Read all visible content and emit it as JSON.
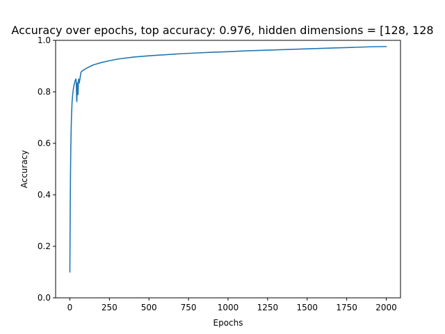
{
  "chart_data": {
    "type": "line",
    "title": "Accuracy over epochs, top accuracy: 0.976, hidden dimensions = [128, 128",
    "xlabel": "Epochs",
    "ylabel": "Accuracy",
    "xlim": [
      -90,
      2090
    ],
    "ylim": [
      0,
      1
    ],
    "xticks": [
      0,
      250,
      500,
      750,
      1000,
      1250,
      1500,
      1750,
      2000
    ],
    "yticks": [
      0.0,
      0.2,
      0.4,
      0.6,
      0.8,
      1.0
    ],
    "xtick_labels": [
      "0",
      "250",
      "500",
      "750",
      "1000",
      "1250",
      "1500",
      "1750",
      "2000"
    ],
    "ytick_labels": [
      "0.0",
      "0.2",
      "0.4",
      "0.6",
      "0.8",
      "1.0"
    ],
    "grid": false,
    "color": "#1f77b4",
    "series": [
      {
        "x": [
          0,
          2,
          4,
          6,
          8,
          10,
          14,
          18,
          22,
          26,
          30,
          34,
          38,
          40,
          42,
          43,
          44,
          46,
          48,
          50,
          52,
          54,
          56,
          58,
          60,
          62,
          64,
          66,
          70,
          75,
          80,
          90,
          100,
          125,
          150,
          200,
          250,
          300,
          400,
          500,
          600,
          700,
          800,
          900,
          1000,
          1100,
          1200,
          1300,
          1400,
          1500,
          1600,
          1700,
          1800,
          1900,
          2000
        ],
        "y": [
          0.1,
          0.32,
          0.48,
          0.58,
          0.65,
          0.7,
          0.76,
          0.79,
          0.81,
          0.825,
          0.835,
          0.845,
          0.85,
          0.84,
          0.8,
          0.77,
          0.762,
          0.8,
          0.835,
          0.83,
          0.79,
          0.84,
          0.85,
          0.84,
          0.835,
          0.845,
          0.85,
          0.86,
          0.875,
          0.88,
          0.882,
          0.886,
          0.89,
          0.898,
          0.905,
          0.914,
          0.921,
          0.927,
          0.935,
          0.94,
          0.944,
          0.948,
          0.951,
          0.954,
          0.956,
          0.959,
          0.961,
          0.963,
          0.965,
          0.967,
          0.969,
          0.971,
          0.973,
          0.975,
          0.976
        ]
      }
    ]
  }
}
